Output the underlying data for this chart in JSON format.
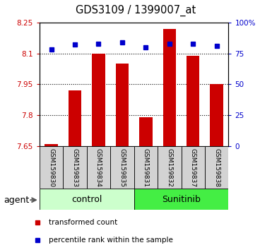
{
  "title": "GDS3109 / 1399007_at",
  "samples": [
    "GSM159830",
    "GSM159833",
    "GSM159834",
    "GSM159835",
    "GSM159831",
    "GSM159832",
    "GSM159837",
    "GSM159838"
  ],
  "transformed_counts": [
    7.66,
    7.92,
    8.1,
    8.05,
    7.79,
    8.22,
    8.09,
    7.95
  ],
  "percentile_ranks": [
    78,
    82,
    83,
    84,
    80,
    83,
    83,
    81
  ],
  "bar_color": "#cc0000",
  "dot_color": "#0000cc",
  "bar_bottom": 7.65,
  "ylim_left": [
    7.65,
    8.25
  ],
  "ylim_right": [
    0,
    100
  ],
  "yticks_left": [
    7.65,
    7.8,
    7.95,
    8.1,
    8.25
  ],
  "ytick_labels_left": [
    "7.65",
    "7.8",
    "7.95",
    "8.1",
    "8.25"
  ],
  "yticks_right": [
    0,
    25,
    50,
    75,
    100
  ],
  "ytick_labels_right": [
    "0",
    "25",
    "50",
    "75",
    "100%"
  ],
  "grid_values": [
    7.8,
    7.95,
    8.1
  ],
  "left_tick_color": "#cc0000",
  "right_tick_color": "#0000cc",
  "agent_label": "agent",
  "control_color": "#ccffcc",
  "sunitinib_color": "#44ee44",
  "legend_red_label": "transformed count",
  "legend_blue_label": "percentile rank within the sample",
  "bar_width": 0.55
}
